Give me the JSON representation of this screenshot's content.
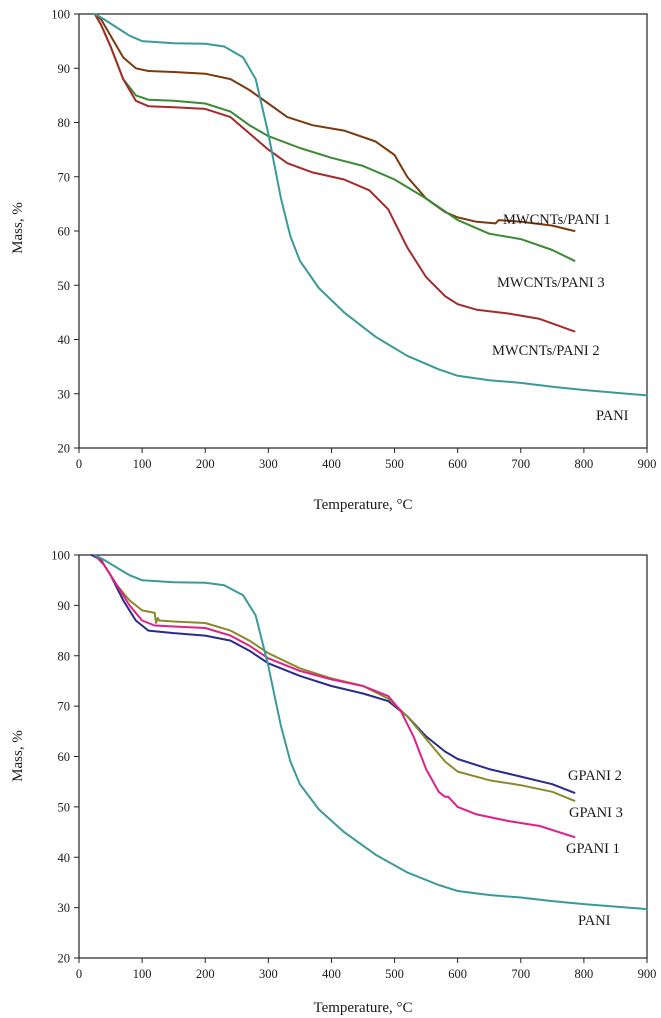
{
  "chart_data": [
    {
      "type": "line",
      "xlabel": "Temperature, °C",
      "ylabel": "Mass, %",
      "xlim": [
        0,
        900
      ],
      "ylim": [
        20,
        100
      ],
      "xticks": [
        0,
        100,
        200,
        300,
        400,
        500,
        600,
        700,
        800,
        900
      ],
      "yticks": [
        20,
        30,
        40,
        50,
        60,
        70,
        80,
        90,
        100
      ],
      "grid": false,
      "series": [
        {
          "name": "MWCNTs/PANI 1",
          "color": "#7a3a0e",
          "x": [
            25,
            35,
            50,
            70,
            90,
            110,
            150,
            200,
            240,
            270,
            300,
            330,
            370,
            420,
            470,
            500,
            505,
            520,
            550,
            580,
            600,
            630,
            660,
            665,
            700,
            750,
            785
          ],
          "y": [
            100,
            99,
            96,
            92,
            90,
            89.5,
            89.3,
            89,
            88,
            86,
            83.5,
            81,
            79.5,
            78.5,
            76.5,
            74,
            73,
            70,
            66,
            63.5,
            62.5,
            61.7,
            61.4,
            62,
            61.7,
            61,
            60
          ]
        },
        {
          "name": "MWCNTs/PANI 3",
          "color": "#3a8a34",
          "x": [
            25,
            35,
            50,
            70,
            90,
            110,
            150,
            200,
            240,
            270,
            300,
            350,
            400,
            450,
            500,
            550,
            600,
            650,
            700,
            750,
            785
          ],
          "y": [
            100,
            98,
            94,
            88,
            85,
            84.2,
            84,
            83.5,
            82,
            79.5,
            77.5,
            75.3,
            73.5,
            72,
            69.5,
            66,
            62,
            59.5,
            58.5,
            56.5,
            54.5
          ]
        },
        {
          "name": "MWCNTs/PANI 2",
          "color": "#a52a2a",
          "x": [
            25,
            35,
            50,
            70,
            90,
            110,
            150,
            200,
            240,
            270,
            300,
            330,
            370,
            420,
            460,
            490,
            520,
            550,
            580,
            600,
            630,
            680,
            730,
            785
          ],
          "y": [
            100,
            98,
            94,
            88,
            84,
            83,
            82.8,
            82.5,
            81,
            78,
            75,
            72.5,
            70.8,
            69.5,
            67.5,
            64,
            57,
            51.5,
            48,
            46.5,
            45.5,
            44.8,
            43.8,
            41.5
          ]
        },
        {
          "name": "PANI",
          "color": "#3a9a9a",
          "x": [
            25,
            40,
            60,
            80,
            100,
            150,
            200,
            230,
            260,
            280,
            300,
            310,
            320,
            335,
            350,
            380,
            420,
            470,
            520,
            570,
            600,
            650,
            700,
            750,
            800,
            850,
            900
          ],
          "y": [
            100,
            99,
            97.5,
            96,
            95,
            94.6,
            94.5,
            94,
            92,
            88,
            78,
            72,
            66,
            59,
            54.5,
            49.5,
            45,
            40.5,
            37,
            34.5,
            33.3,
            32.5,
            32,
            31.3,
            30.7,
            30.2,
            29.7
          ]
        }
      ]
    },
    {
      "type": "line",
      "xlabel": "Temperature, °C",
      "ylabel": "Mass, %",
      "xlim": [
        0,
        900
      ],
      "ylim": [
        20,
        100
      ],
      "xticks": [
        0,
        100,
        200,
        300,
        400,
        500,
        600,
        700,
        800,
        900
      ],
      "yticks": [
        20,
        30,
        40,
        50,
        60,
        70,
        80,
        90,
        100
      ],
      "grid": false,
      "series": [
        {
          "name": "GPANI 2",
          "color": "#2b2b8c",
          "x": [
            20,
            35,
            50,
            70,
            90,
            110,
            150,
            200,
            240,
            270,
            300,
            350,
            400,
            450,
            490,
            520,
            550,
            580,
            600,
            650,
            700,
            750,
            785
          ],
          "y": [
            100,
            99,
            96,
            91,
            87,
            85,
            84.5,
            84,
            83,
            81,
            78.5,
            76,
            74,
            72.5,
            71,
            68,
            64,
            61,
            59.5,
            57.5,
            56,
            54.5,
            52.8
          ]
        },
        {
          "name": "GPANI 3",
          "color": "#8a8a2a",
          "x": [
            25,
            40,
            60,
            80,
            100,
            120,
            122,
            125,
            127,
            150,
            200,
            240,
            270,
            300,
            350,
            400,
            450,
            490,
            520,
            550,
            580,
            600,
            650,
            700,
            750,
            785
          ],
          "y": [
            100,
            98,
            94,
            91,
            89,
            88.5,
            86.5,
            87.5,
            87,
            86.8,
            86.5,
            85,
            83,
            80.5,
            77.5,
            75.5,
            74,
            71.5,
            68,
            63.5,
            59,
            57,
            55.3,
            54.3,
            53,
            51.2
          ]
        },
        {
          "name": "GPANI 1",
          "color": "#e0208a",
          "x": [
            25,
            40,
            60,
            80,
            100,
            120,
            150,
            200,
            240,
            270,
            300,
            350,
            400,
            450,
            490,
            510,
            530,
            550,
            570,
            580,
            585,
            600,
            630,
            680,
            730,
            785
          ],
          "y": [
            100,
            98,
            94,
            90,
            87,
            86,
            85.8,
            85.5,
            84,
            82,
            79.5,
            77,
            75.3,
            74,
            72,
            69,
            64,
            57.5,
            53,
            52,
            52,
            50,
            48.5,
            47.2,
            46.2,
            44
          ]
        },
        {
          "name": "PANI",
          "color": "#3a9a9a",
          "x": [
            25,
            40,
            60,
            80,
            100,
            150,
            200,
            230,
            260,
            280,
            300,
            310,
            320,
            335,
            350,
            380,
            420,
            470,
            520,
            570,
            600,
            650,
            700,
            750,
            800,
            850,
            900
          ],
          "y": [
            100,
            99,
            97.5,
            96,
            95,
            94.6,
            94.5,
            94,
            92,
            88,
            78,
            72,
            66,
            59,
            54.5,
            49.5,
            45,
            40.5,
            37,
            34.5,
            33.3,
            32.5,
            32,
            31.3,
            30.7,
            30.2,
            29.7
          ]
        }
      ]
    }
  ]
}
